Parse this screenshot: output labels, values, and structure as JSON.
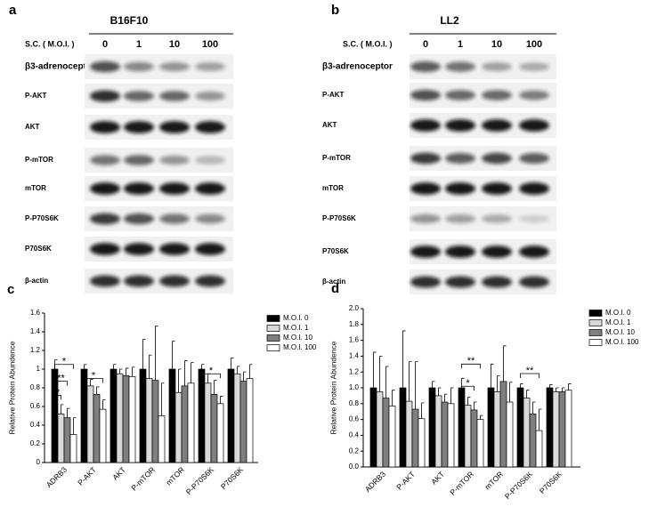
{
  "panels": [
    {
      "label": "a",
      "cell_line": "B16F10",
      "condition": "S.C. ( M.O.I. )",
      "lanes": [
        "0",
        "1",
        "10",
        "100"
      ],
      "proteins": [
        "β3-adrenoceptor",
        "P-AKT",
        "AKT",
        "P-mTOR",
        "mTOR",
        "P-P70S6K",
        "P70S6K",
        "β-actin"
      ]
    },
    {
      "label": "b",
      "cell_line": "LL2",
      "condition": "S.C. ( M.O.I. )",
      "lanes": [
        "0",
        "1",
        "10",
        "100"
      ],
      "proteins": [
        "β3-adrenoceptor",
        "P-AKT",
        "AKT",
        "P-mTOR",
        "mTOR",
        "P-P70S6K",
        "P70S6K",
        "β-actin"
      ]
    }
  ],
  "chart_data": [
    {
      "type": "bar",
      "label": "c",
      "ylabel": "Relative Protein Abundence",
      "categories": [
        "ADRB3",
        "P-AKT",
        "AKT",
        "P-mTOR",
        "mTOR",
        "P-P70S6K",
        "P70S6K"
      ],
      "series": [
        {
          "name": "M.O.I. 0",
          "color": "#000000",
          "values": [
            1.0,
            1.0,
            1.0,
            1.0,
            1.0,
            1.0,
            1.0
          ],
          "error": [
            0.1,
            0.05,
            0.05,
            0.32,
            0.3,
            0.05,
            0.12
          ]
        },
        {
          "name": "M.O.I. 1",
          "color": "#d9d9d9",
          "values": [
            0.52,
            0.82,
            0.95,
            0.9,
            0.75,
            0.85,
            0.95
          ],
          "error": [
            0.1,
            0.07,
            0.05,
            0.25,
            0.25,
            0.1,
            0.08
          ]
        },
        {
          "name": "M.O.I. 10",
          "color": "#7f7f7f",
          "values": [
            0.48,
            0.73,
            0.93,
            0.88,
            0.82,
            0.73,
            0.87
          ],
          "error": [
            0.1,
            0.08,
            0.08,
            0.58,
            0.27,
            0.15,
            0.1
          ]
        },
        {
          "name": "M.O.I. 100",
          "color": "#ffffff",
          "values": [
            0.3,
            0.57,
            0.92,
            0.5,
            0.85,
            0.63,
            0.9
          ],
          "error": [
            0.18,
            0.1,
            0.1,
            0.35,
            0.22,
            0.08,
            0.15
          ]
        }
      ],
      "ylim": [
        0,
        1.6
      ],
      "yticks": [
        0,
        0.2,
        0.4,
        0.6,
        0.8,
        1,
        1.2,
        1.4,
        1.6
      ],
      "annotations": [
        "*",
        "**",
        "*",
        "*",
        "*"
      ]
    },
    {
      "type": "bar",
      "label": "d",
      "ylabel": "Relative Protein Abundence",
      "categories": [
        "ADRB3",
        "P-AKT",
        "AKT",
        "P-mTOR",
        "mTOR",
        "P-P70S6K",
        "P70S6K"
      ],
      "series": [
        {
          "name": "M.O.I. 0",
          "color": "#000000",
          "values": [
            1.0,
            1.0,
            1.0,
            1.0,
            1.0,
            1.0,
            1.0
          ],
          "error": [
            0.45,
            0.72,
            0.08,
            0.12,
            0.3,
            0.05,
            0.04
          ]
        },
        {
          "name": "M.O.I. 1",
          "color": "#d9d9d9",
          "values": [
            0.95,
            0.83,
            0.9,
            0.78,
            0.95,
            0.87,
            0.95
          ],
          "error": [
            0.45,
            0.5,
            0.1,
            0.1,
            0.2,
            0.1,
            0.05
          ]
        },
        {
          "name": "M.O.I. 10",
          "color": "#7f7f7f",
          "values": [
            0.87,
            0.73,
            0.82,
            0.72,
            1.08,
            0.67,
            0.95
          ],
          "error": [
            0.4,
            0.6,
            0.1,
            0.1,
            0.45,
            0.15,
            0.05
          ]
        },
        {
          "name": "M.O.I. 100",
          "color": "#ffffff",
          "values": [
            0.77,
            0.61,
            0.8,
            0.6,
            0.82,
            0.46,
            0.97
          ],
          "error": [
            0.2,
            0.2,
            0.2,
            0.05,
            0.25,
            0.27,
            0.08
          ]
        }
      ],
      "ylim": [
        0,
        2.0
      ],
      "yticks": [
        {
          "value": 0,
          "label": "0.0"
        },
        0.2,
        0.4,
        0.6,
        0.8,
        {
          "value": 1,
          "label": "1.0"
        },
        1.2,
        1.4,
        1.6,
        1.8,
        {
          "value": 2,
          "label": "2.0"
        }
      ],
      "annotations": [
        "**",
        "*",
        "**"
      ]
    }
  ]
}
